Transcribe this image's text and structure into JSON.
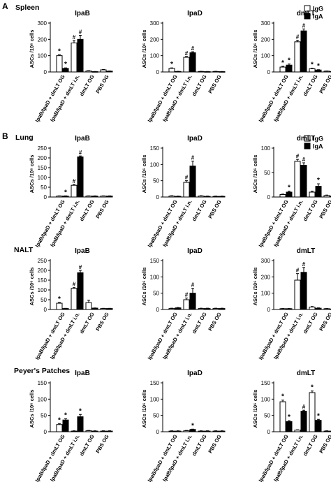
{
  "figure": {
    "x_categories": [
      "IpaB/IpaD + dmLT OG",
      "IpaB/IpaD + dmLT i.n.",
      "dmLT OG",
      "PBS OG"
    ],
    "ylabel": "ASCs /10⁶ cells",
    "legend": [
      {
        "label": "IgG",
        "color": "#ffffff"
      },
      {
        "label": "IgA",
        "color": "#000000"
      }
    ]
  },
  "panels": [
    {
      "letter": "A",
      "title": "Spleen",
      "show_legend": true,
      "show_xlabels": true
    },
    {
      "letter": "B",
      "title": "Lung",
      "show_legend": true,
      "show_xlabels": true
    },
    {
      "letter": "",
      "title": "NALT",
      "show_legend": false,
      "show_xlabels": true
    },
    {
      "letter": "",
      "title": "Peyer's Patches",
      "show_legend": false,
      "show_xlabels": true
    }
  ],
  "chart_data": [
    {
      "type": "bar",
      "row": 0,
      "col": 0,
      "title": "IpaB",
      "ylabel": "ASCs /10⁶ cells",
      "ylim": [
        0,
        300
      ],
      "categories": [
        "IpaB/IpaD + dmLT OG",
        "IpaB/IpaD + dmLT i.n.",
        "dmLT OG",
        "PBS OG"
      ],
      "series": [
        {
          "name": "IgG",
          "values": [
            100,
            178,
            6,
            13
          ],
          "errors": [
            5,
            15,
            2,
            2
          ],
          "marks": [
            "*",
            "#",
            "",
            ""
          ]
        },
        {
          "name": "IgA",
          "values": [
            22,
            200,
            2,
            5
          ],
          "errors": [
            3,
            25,
            1,
            1
          ],
          "marks": [
            "*",
            "#",
            "",
            ""
          ]
        }
      ]
    },
    {
      "type": "bar",
      "row": 0,
      "col": 1,
      "title": "IpaD",
      "ylabel": "ASCs /10⁶ cells",
      "ylim": [
        0,
        300
      ],
      "categories": [
        "IpaB/IpaD + dmLT OG",
        "IpaB/IpaD + dmLT i.n.",
        "dmLT OG",
        "PBS OG"
      ],
      "series": [
        {
          "name": "IgG",
          "values": [
            22,
            90,
            3,
            3
          ],
          "errors": [
            3,
            5,
            1,
            1
          ],
          "marks": [
            "*",
            "#",
            "",
            ""
          ]
        },
        {
          "name": "IgA",
          "values": [
            3,
            118,
            2,
            2
          ],
          "errors": [
            1,
            6,
            1,
            1
          ],
          "marks": [
            "",
            "#",
            "",
            ""
          ]
        }
      ]
    },
    {
      "type": "bar",
      "row": 0,
      "col": 2,
      "title": "dmLT",
      "ylabel": "ASCs /10⁶ cells",
      "ylim": [
        0,
        300
      ],
      "categories": [
        "IpaB/IpaD + dmLT OG",
        "IpaB/IpaD + dmLT i.n.",
        "dmLT OG",
        "PBS OG"
      ],
      "series": [
        {
          "name": "IgG",
          "values": [
            30,
            185,
            20,
            5
          ],
          "errors": [
            5,
            10,
            3,
            1
          ],
          "marks": [
            "*",
            "#",
            "*",
            ""
          ]
        },
        {
          "name": "IgA",
          "values": [
            42,
            252,
            12,
            3
          ],
          "errors": [
            7,
            12,
            2,
            1
          ],
          "marks": [
            "*",
            "#",
            "*",
            ""
          ]
        }
      ]
    },
    {
      "type": "bar",
      "row": 1,
      "col": 0,
      "title": "IpaB",
      "ylabel": "ASCs /10⁶ cells",
      "ylim": [
        0,
        250
      ],
      "categories": [
        "IpaB/IpaD + dmLT OG",
        "IpaB/IpaD + dmLT i.n.",
        "dmLT OG",
        "PBS OG"
      ],
      "series": [
        {
          "name": "IgG",
          "values": [
            5,
            60,
            5,
            5
          ],
          "errors": [
            1,
            4,
            1,
            1
          ],
          "marks": [
            "",
            "#",
            "",
            ""
          ]
        },
        {
          "name": "IgA",
          "values": [
            5,
            205,
            5,
            5
          ],
          "errors": [
            1,
            5,
            1,
            1
          ],
          "marks": [
            "*",
            "#",
            "",
            ""
          ]
        }
      ]
    },
    {
      "type": "bar",
      "row": 1,
      "col": 1,
      "title": "IpaD",
      "ylabel": "ASCs /10⁶ cells",
      "ylim": [
        0,
        150
      ],
      "categories": [
        "IpaB/IpaD + dmLT OG",
        "IpaB/IpaD + dmLT i.n.",
        "dmLT OG",
        "PBS OG"
      ],
      "series": [
        {
          "name": "IgG",
          "values": [
            3,
            45,
            3,
            2
          ],
          "errors": [
            1,
            5,
            1,
            1
          ],
          "marks": [
            "",
            "#",
            "",
            ""
          ]
        },
        {
          "name": "IgA",
          "values": [
            2,
            95,
            2,
            2
          ],
          "errors": [
            1,
            15,
            1,
            1
          ],
          "marks": [
            "",
            "#",
            "",
            ""
          ]
        }
      ]
    },
    {
      "type": "bar",
      "row": 1,
      "col": 2,
      "title": "dmLT",
      "ylabel": "ASCs /10⁶ cells",
      "ylim": [
        0,
        100
      ],
      "categories": [
        "IpaB/IpaD + dmLT OG",
        "IpaB/IpaD + dmLT i.n.",
        "dmLT OG",
        "PBS OG"
      ],
      "series": [
        {
          "name": "IgG",
          "values": [
            5,
            73,
            10,
            3
          ],
          "errors": [
            1,
            4,
            2,
            1
          ],
          "marks": [
            "",
            "#",
            "",
            ""
          ]
        },
        {
          "name": "IgA",
          "values": [
            10,
            65,
            22,
            2
          ],
          "errors": [
            2,
            5,
            5,
            1
          ],
          "marks": [
            "*",
            "#",
            "*",
            ""
          ]
        }
      ]
    },
    {
      "type": "bar",
      "row": 2,
      "col": 0,
      "title": "IpaB",
      "ylabel": "ASCs /10⁶ cells",
      "ylim": [
        0,
        250
      ],
      "categories": [
        "IpaB/IpaD + dmLT OG",
        "IpaB/IpaD + dmLT i.n.",
        "dmLT OG",
        "PBS OG"
      ],
      "series": [
        {
          "name": "IgG",
          "values": [
            32,
            108,
            35,
            5
          ],
          "errors": [
            4,
            4,
            12,
            1
          ],
          "marks": [
            "*",
            "#",
            "",
            ""
          ]
        },
        {
          "name": "IgA",
          "values": [
            5,
            188,
            7,
            5
          ],
          "errors": [
            1,
            12,
            1,
            1
          ],
          "marks": [
            "",
            "#",
            "",
            ""
          ]
        }
      ]
    },
    {
      "type": "bar",
      "row": 2,
      "col": 1,
      "title": "IpaD",
      "ylabel": "ASCs /10⁶ cells",
      "ylim": [
        0,
        150
      ],
      "categories": [
        "IpaB/IpaD + dmLT OG",
        "IpaB/IpaD + dmLT i.n.",
        "dmLT OG",
        "PBS OG"
      ],
      "series": [
        {
          "name": "IgG",
          "values": [
            3,
            30,
            3,
            3
          ],
          "errors": [
            1,
            5,
            1,
            1
          ],
          "marks": [
            "",
            "#",
            "",
            ""
          ]
        },
        {
          "name": "IgA",
          "values": [
            5,
            50,
            3,
            3
          ],
          "errors": [
            1,
            15,
            1,
            1
          ],
          "marks": [
            "",
            "#",
            "",
            ""
          ]
        }
      ]
    },
    {
      "type": "bar",
      "row": 2,
      "col": 2,
      "title": "dmLT",
      "ylabel": "ASCs /10⁶ cells",
      "ylim": [
        0,
        300
      ],
      "categories": [
        "IpaB/IpaD + dmLT OG",
        "IpaB/IpaD + dmLT i.n.",
        "dmLT OG",
        "PBS OG"
      ],
      "series": [
        {
          "name": "IgG",
          "values": [
            5,
            180,
            15,
            5
          ],
          "errors": [
            1,
            40,
            3,
            1
          ],
          "marks": [
            "",
            "#",
            "",
            ""
          ]
        },
        {
          "name": "IgA",
          "values": [
            5,
            228,
            8,
            3
          ],
          "errors": [
            1,
            30,
            2,
            1
          ],
          "marks": [
            "",
            "#",
            "",
            ""
          ]
        }
      ]
    },
    {
      "type": "bar",
      "row": 3,
      "col": 0,
      "title": "IpaB",
      "ylabel": "ASCs /10⁶ cells",
      "ylim": [
        0,
        150
      ],
      "categories": [
        "IpaB/IpaD + dmLT OG",
        "IpaB/IpaD + dmLT i.n.",
        "dmLT OG",
        "PBS OG"
      ],
      "series": [
        {
          "name": "IgG",
          "values": [
            22,
            2,
            3,
            2
          ],
          "errors": [
            3,
            1,
            1,
            1
          ],
          "marks": [
            "*",
            "",
            "",
            ""
          ]
        },
        {
          "name": "IgA",
          "values": [
            36,
            46,
            2,
            2
          ],
          "errors": [
            4,
            7,
            1,
            1
          ],
          "marks": [
            "*",
            "*",
            "",
            ""
          ]
        }
      ]
    },
    {
      "type": "bar",
      "row": 3,
      "col": 1,
      "title": "IpaD",
      "ylabel": "ASCs /10⁶ cells",
      "ylim": [
        0,
        150
      ],
      "categories": [
        "IpaB/IpaD + dmLT OG",
        "IpaB/IpaD + dmLT i.n.",
        "dmLT OG",
        "PBS OG"
      ],
      "series": [
        {
          "name": "IgG",
          "values": [
            2,
            3,
            2,
            2
          ],
          "errors": [
            1,
            1,
            1,
            1
          ],
          "marks": [
            "",
            "",
            "",
            ""
          ]
        },
        {
          "name": "IgA",
          "values": [
            2,
            7,
            2,
            2
          ],
          "errors": [
            1,
            1,
            1,
            1
          ],
          "marks": [
            "",
            "*",
            "",
            ""
          ]
        }
      ]
    },
    {
      "type": "bar",
      "row": 3,
      "col": 2,
      "title": "dmLT",
      "ylabel": "ASCs /10⁶ cells",
      "ylim": [
        0,
        150
      ],
      "categories": [
        "IpaB/IpaD + dmLT OG",
        "IpaB/IpaD + dmLT i.n.",
        "dmLT OG",
        "PBS OG"
      ],
      "series": [
        {
          "name": "IgG",
          "values": [
            92,
            5,
            120,
            2
          ],
          "errors": [
            5,
            1,
            5,
            1
          ],
          "marks": [
            "*",
            "",
            "*",
            ""
          ]
        },
        {
          "name": "IgA",
          "values": [
            31,
            63,
            35,
            2
          ],
          "errors": [
            3,
            3,
            3,
            1
          ],
          "marks": [
            "*",
            "#",
            "*",
            ""
          ]
        }
      ]
    }
  ]
}
